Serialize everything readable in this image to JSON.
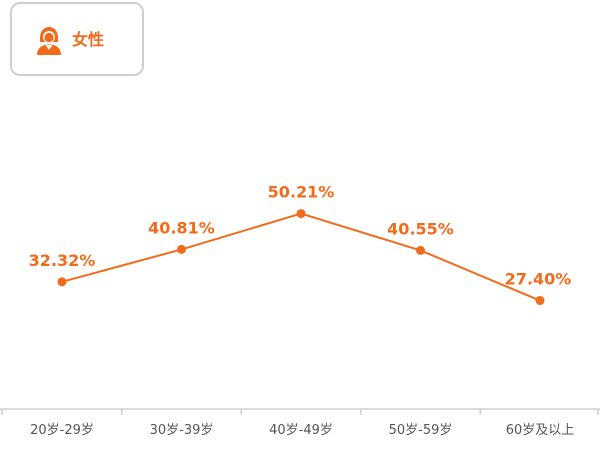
{
  "legend": {
    "label": "女性",
    "icon": "female-user-icon",
    "color": "#f26b1d"
  },
  "chart_data": {
    "type": "line",
    "categories": [
      "20岁-29岁",
      "30岁-39岁",
      "40岁-49岁",
      "50岁-59岁",
      "60岁及以上"
    ],
    "series": [
      {
        "name": "女性",
        "values": [
          32.32,
          40.81,
          50.21,
          40.55,
          27.4
        ],
        "labels": [
          "32.32%",
          "40.81%",
          "50.21%",
          "40.55%",
          "27.40%"
        ],
        "color": "#f26b1d"
      }
    ],
    "ylim": [
      0,
      80
    ],
    "grid": false,
    "legend_position": "top-left"
  }
}
